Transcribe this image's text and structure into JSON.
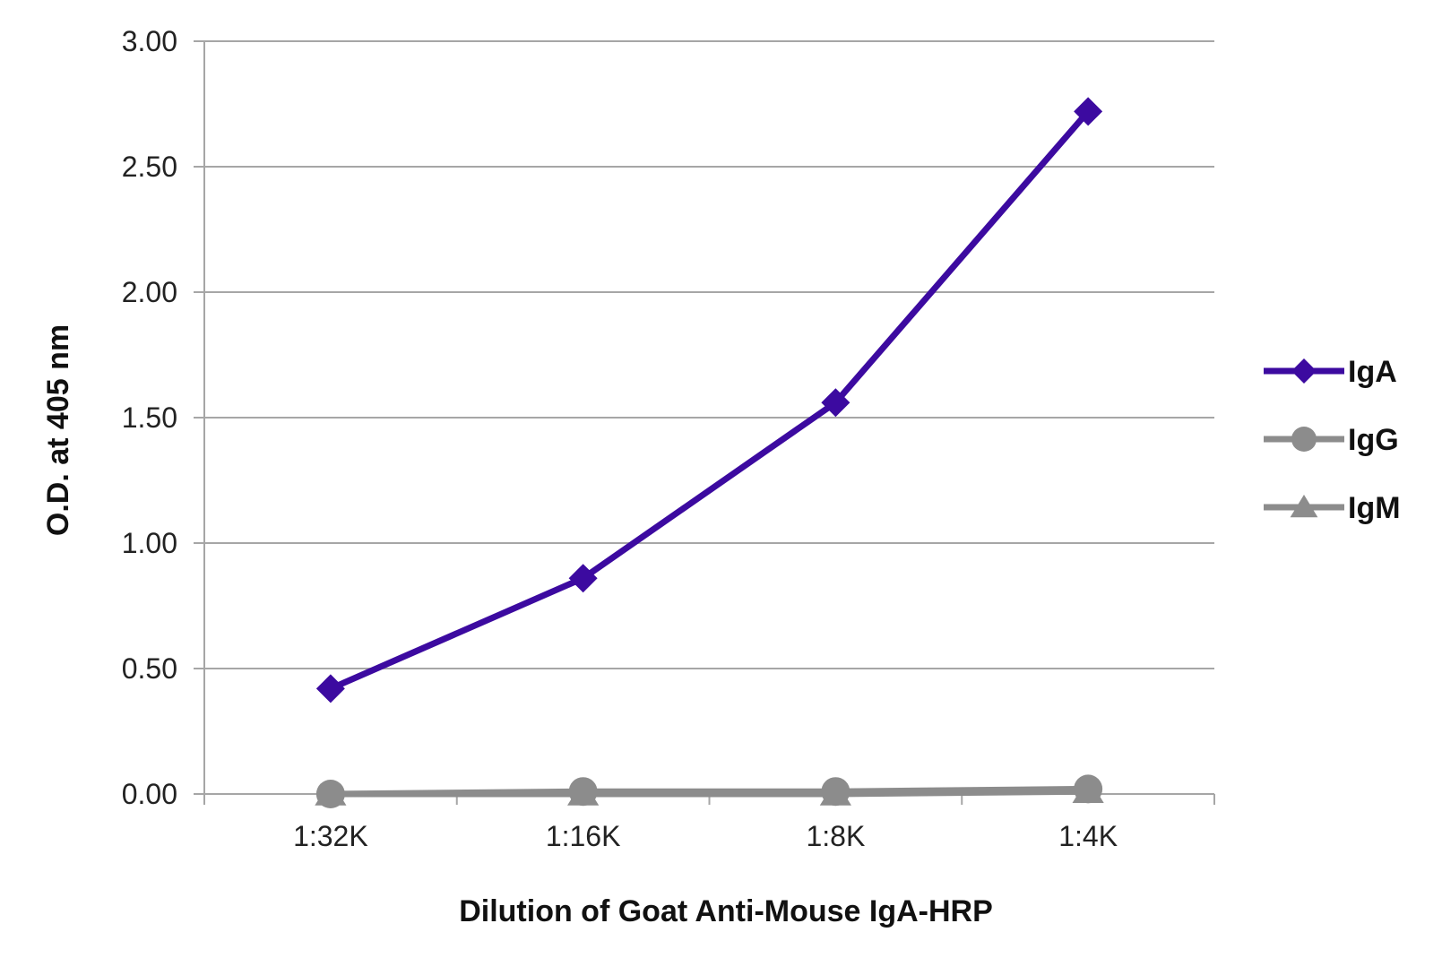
{
  "chart_data": {
    "type": "line",
    "categories": [
      "1:32K",
      "1:16K",
      "1:8K",
      "1:4K"
    ],
    "series": [
      {
        "name": "IgA",
        "values": [
          0.42,
          0.86,
          1.56,
          2.72
        ],
        "color": "#3c0aa0",
        "marker": "diamond"
      },
      {
        "name": "IgG",
        "values": [
          0.0,
          0.01,
          0.01,
          0.02
        ],
        "color": "#8c8c8c",
        "marker": "circle"
      },
      {
        "name": "IgM",
        "values": [
          0.0,
          0.0,
          0.0,
          0.01
        ],
        "color": "#8c8c8c",
        "marker": "triangle"
      }
    ],
    "y_ticks": [
      "0.00",
      "0.50",
      "1.00",
      "1.50",
      "2.00",
      "2.50",
      "3.00"
    ],
    "ylim": [
      0,
      3
    ],
    "xlabel": "Dilution of Goat Anti-Mouse IgA-HRP",
    "ylabel": "O.D. at 405 nm",
    "grid": true,
    "legend_position": "right"
  }
}
